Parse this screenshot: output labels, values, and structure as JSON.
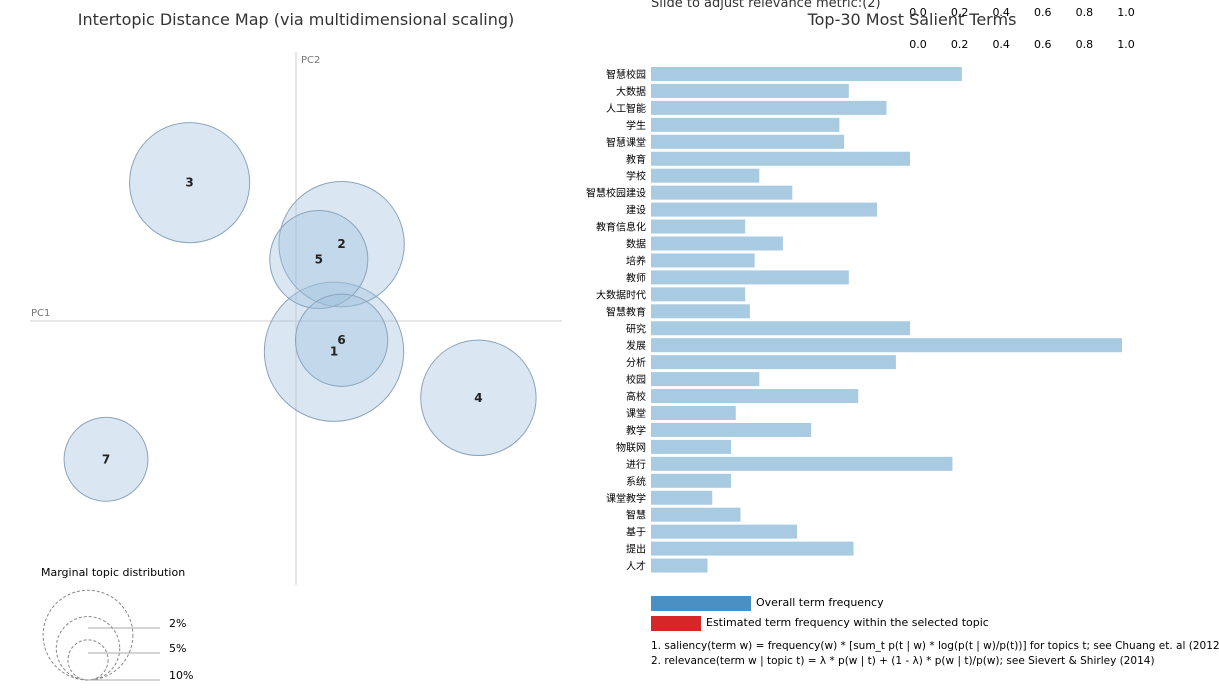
{
  "chart_data": [
    {
      "type": "scatter",
      "title": "Intertopic Distance Map (via multidimensional scaling)",
      "xlabel": "PC1",
      "ylabel": "PC2",
      "xlim": [
        -0.35,
        0.35
      ],
      "ylim": [
        -0.35,
        0.35
      ],
      "topics": [
        {
          "label": "1",
          "x": 0.05,
          "y": -0.04,
          "marginal": 10.5
        },
        {
          "label": "2",
          "x": 0.06,
          "y": 0.1,
          "marginal": 8.5
        },
        {
          "label": "3",
          "x": -0.14,
          "y": 0.18,
          "marginal": 7.8
        },
        {
          "label": "4",
          "x": 0.24,
          "y": -0.1,
          "marginal": 7.2
        },
        {
          "label": "5",
          "x": 0.03,
          "y": 0.08,
          "marginal": 5.2
        },
        {
          "label": "6",
          "x": 0.06,
          "y": -0.025,
          "marginal": 4.6
        },
        {
          "label": "7",
          "x": -0.25,
          "y": -0.18,
          "marginal": 3.8
        }
      ],
      "legend": {
        "title": "Marginal topic distribution",
        "items": [
          {
            "label": "2%",
            "value": 2
          },
          {
            "label": "5%",
            "value": 5
          },
          {
            "label": "10%",
            "value": 10
          }
        ]
      }
    },
    {
      "type": "bar",
      "orientation": "horizontal",
      "title": "Top-30 Most Salient Terms",
      "xlim": [
        0,
        1.0
      ],
      "xticks": [
        "0.0",
        "0.2",
        "0.4",
        "0.6",
        "0.8",
        "1.0"
      ],
      "categories": [
        "智慧校园",
        "大数据",
        "人工智能",
        "学生",
        "智慧课堂",
        "教育",
        "学校",
        "智慧校园建设",
        "建设",
        "教育信息化",
        "数据",
        "培养",
        "教师",
        "大数据时代",
        "智慧教育",
        "研究",
        "发展",
        "分析",
        "校园",
        "高校",
        "课堂",
        "教学",
        "物联网",
        "进行",
        "系统",
        "课堂教学",
        "智慧",
        "基于",
        "提出",
        "人才"
      ],
      "values": [
        0.66,
        0.42,
        0.5,
        0.4,
        0.41,
        0.55,
        0.23,
        0.3,
        0.48,
        0.2,
        0.28,
        0.22,
        0.42,
        0.2,
        0.21,
        0.55,
        1.0,
        0.52,
        0.23,
        0.44,
        0.18,
        0.34,
        0.17,
        0.64,
        0.17,
        0.13,
        0.19,
        0.31,
        0.43,
        0.12
      ],
      "bar_color": "#a8cbe2"
    }
  ],
  "slider": {
    "label": "Slide to adjust relevance metric:(2)",
    "ticks": [
      "0.0",
      "0.2",
      "0.4",
      "0.6",
      "0.8",
      "1.0"
    ]
  },
  "legend": {
    "overall_label": "Overall term frequency",
    "overall_color": "#4a90c2",
    "estimated_label": "Estimated term frequency within the selected topic",
    "estimated_color": "#d62728"
  },
  "footnotes": [
    "1. saliency(term w) = frequency(w) * [sum_t p(t | w) * log(p(t | w)/p(t))] for topics t; see Chuang et. al (2012)",
    "2. relevance(term w | topic t) = λ * p(w | t) + (1 - λ) * p(w | t)/p(w); see Sievert & Shirley (2014)"
  ]
}
